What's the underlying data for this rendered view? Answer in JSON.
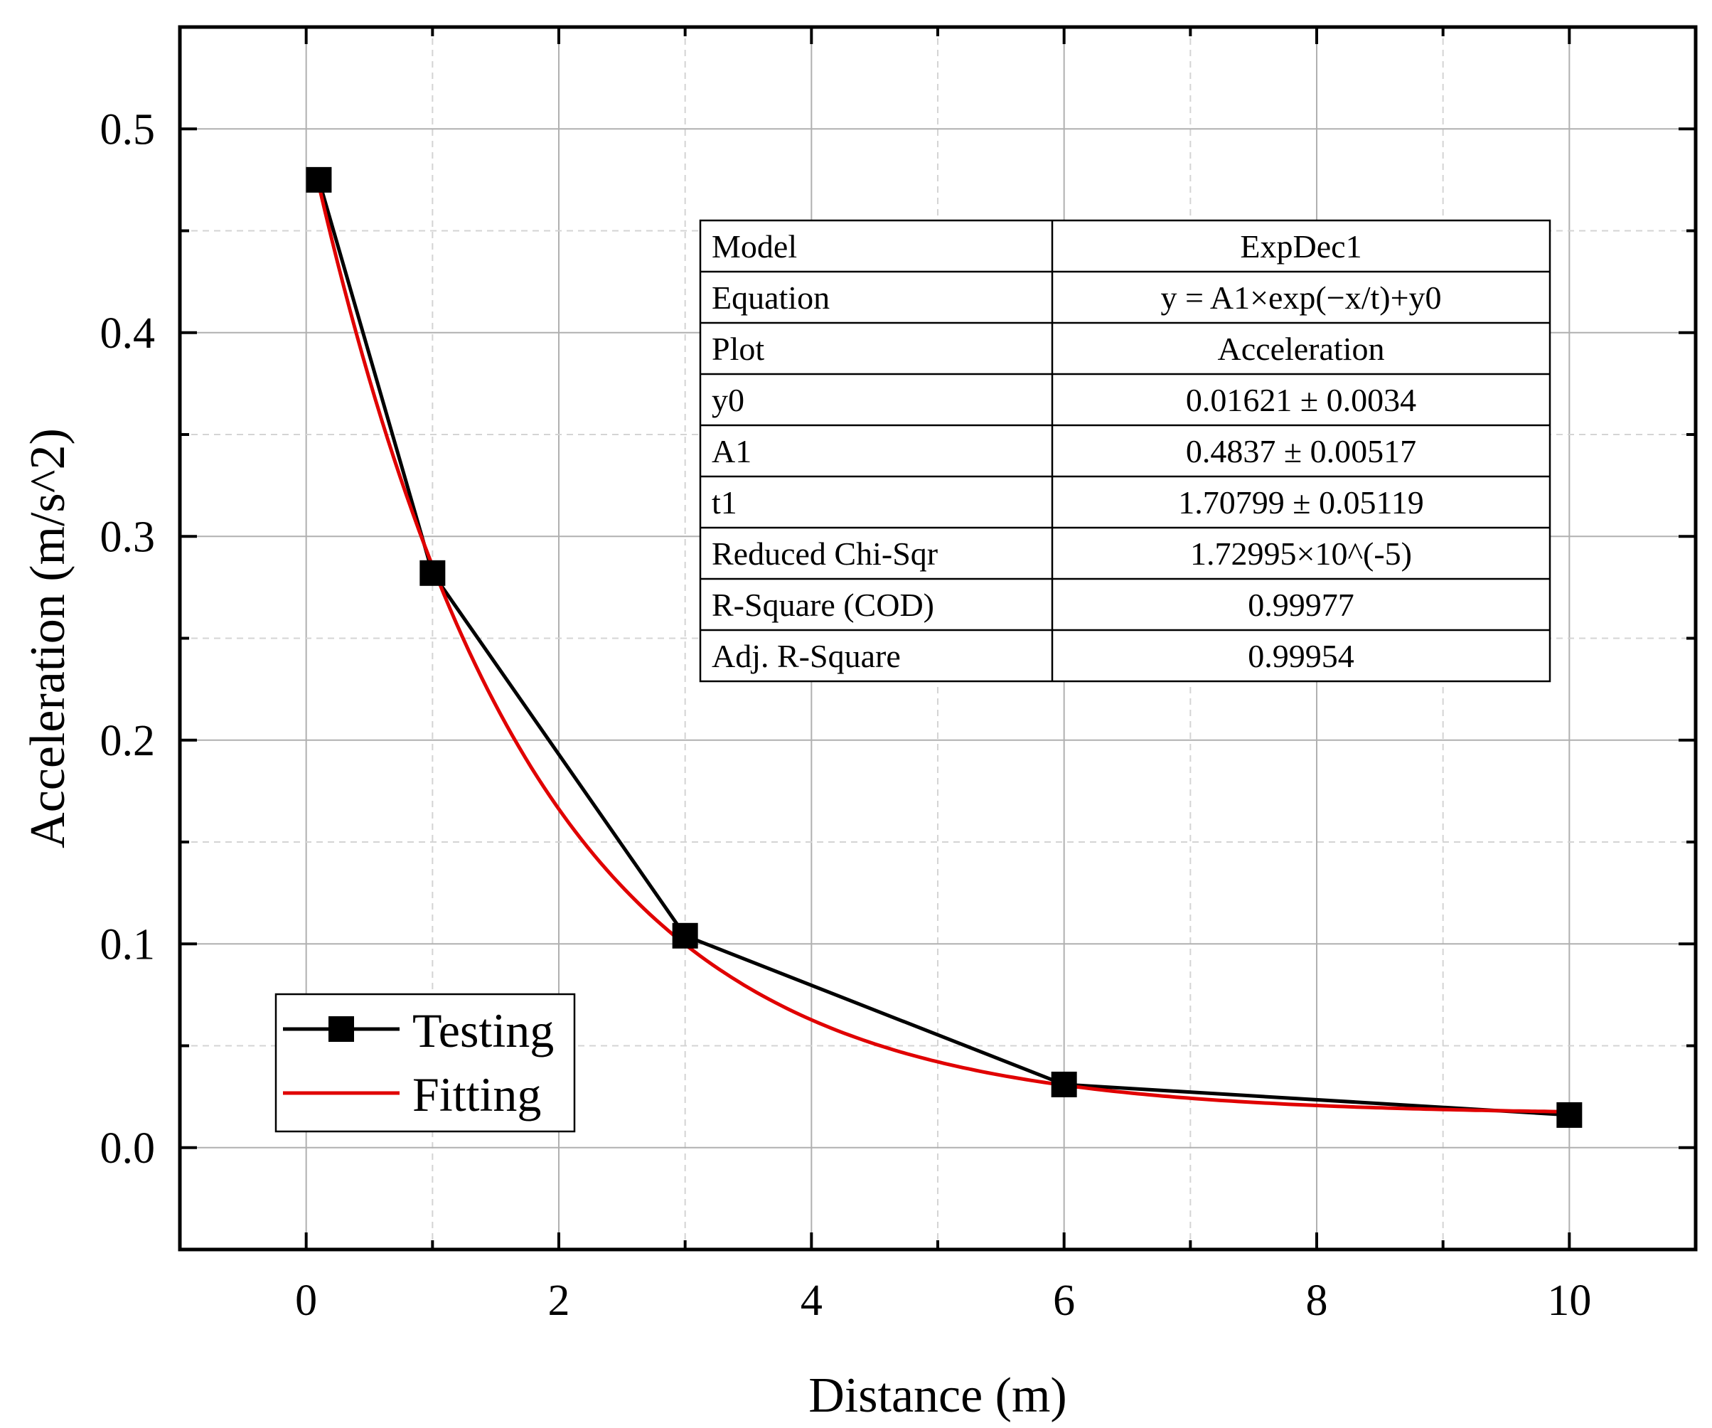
{
  "chart_data": {
    "type": "line",
    "xlabel": "Distance (m)",
    "ylabel": "Acceleration (m/s^2)",
    "xlim": [
      -1,
      11
    ],
    "ylim": [
      -0.05,
      0.55
    ],
    "xticks": [
      0,
      2,
      4,
      6,
      8,
      10
    ],
    "xtick_labels": [
      "0",
      "2",
      "4",
      "6",
      "8",
      "10"
    ],
    "yticks": [
      0.0,
      0.1,
      0.2,
      0.3,
      0.4,
      0.5
    ],
    "ytick_labels": [
      "0.0",
      "0.1",
      "0.2",
      "0.3",
      "0.4",
      "0.5"
    ],
    "grid": true,
    "legend_position": "bottom-left",
    "series": [
      {
        "name": "Testing",
        "kind": "line-with-square-markers",
        "color": "#000000",
        "x": [
          0.1,
          1,
          3,
          6,
          10
        ],
        "y": [
          0.475,
          0.282,
          0.104,
          0.031,
          0.016
        ]
      },
      {
        "name": "Fitting",
        "kind": "exponential-fit",
        "color": "#e00000",
        "x_range": [
          0.1,
          10
        ],
        "params": {
          "y0": 0.01621,
          "A1": 0.4837,
          "t1": 1.70799
        }
      }
    ],
    "fit_table": {
      "rows": [
        [
          "Model",
          "ExpDec1"
        ],
        [
          "Equation",
          "y = A1×exp(−x/t)+y0"
        ],
        [
          "Plot",
          "Acceleration"
        ],
        [
          "y0",
          "0.01621 ± 0.0034"
        ],
        [
          "A1",
          "0.4837 ± 0.00517"
        ],
        [
          "t1",
          "1.70799 ± 0.05119"
        ],
        [
          "Reduced Chi-Sqr",
          "1.72995×10^(-5)"
        ],
        [
          "R-Square (COD)",
          "0.99977"
        ],
        [
          "Adj. R-Square",
          "0.99954"
        ]
      ]
    }
  }
}
